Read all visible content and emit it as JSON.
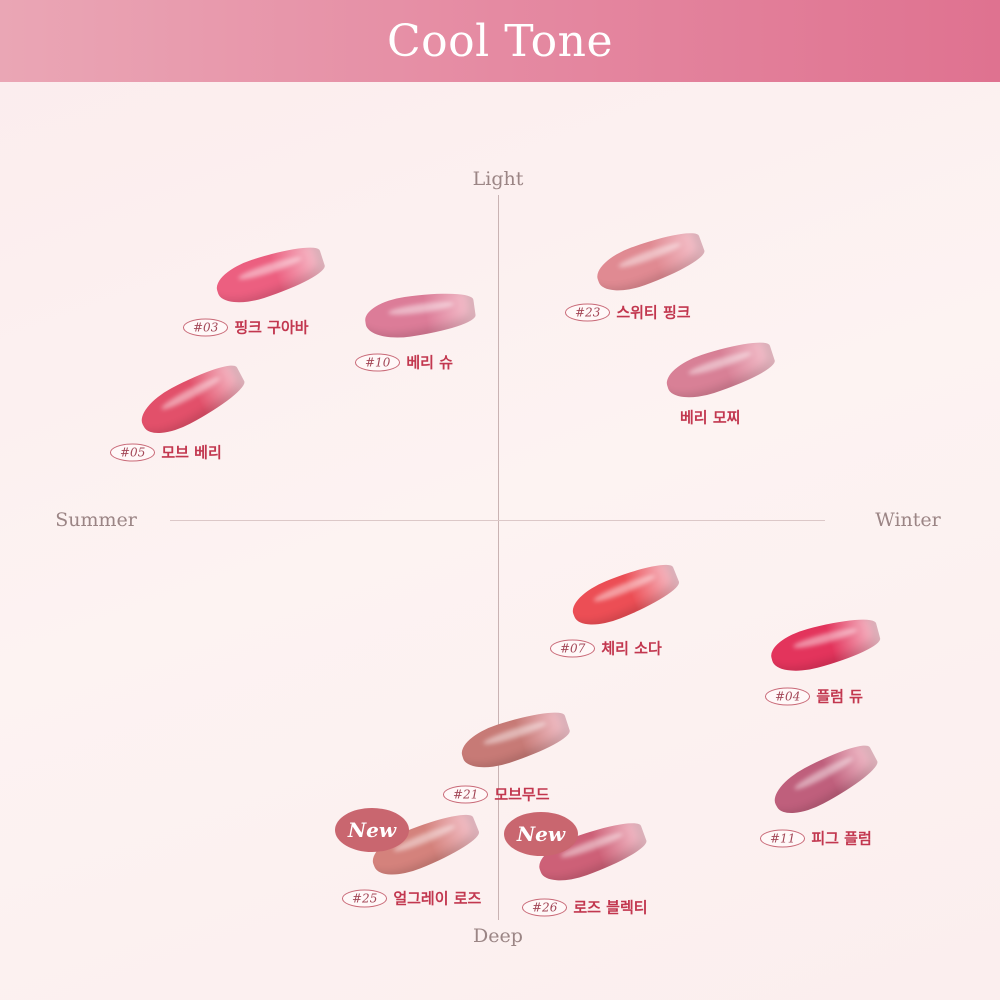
{
  "header": {
    "title": "Cool Tone"
  },
  "axes": {
    "top": "Light",
    "bottom": "Deep",
    "left": "Summer",
    "right": "Winter"
  },
  "shades": [
    {
      "number": "#03",
      "name": "핑크 구아바",
      "color": "#ec5f80",
      "new": false
    },
    {
      "number": "#10",
      "name": "베리 슈",
      "color": "#dc7c98",
      "new": false
    },
    {
      "number": "#05",
      "name": "모브 베리",
      "color": "#e2506a",
      "new": false
    },
    {
      "number": "#23",
      "name": "스위티 핑크",
      "color": "#e08a92",
      "new": false
    },
    {
      "number": "",
      "name": "베리 모찌",
      "color": "#d88096",
      "new": false
    },
    {
      "number": "#07",
      "name": "체리 소다",
      "color": "#ec4e55",
      "new": false
    },
    {
      "number": "#04",
      "name": "플럼 듀",
      "color": "#e3345c",
      "new": false
    },
    {
      "number": "#21",
      "name": "모브무드",
      "color": "#c77a76",
      "new": false
    },
    {
      "number": "#11",
      "name": "피그 플럼",
      "color": "#bf5f7c",
      "new": false
    },
    {
      "number": "#25",
      "name": "얼그레이 로즈",
      "color": "#d4827c",
      "new": true
    },
    {
      "number": "#26",
      "name": "로즈 블렉티",
      "color": "#cd6077",
      "new": true
    }
  ],
  "badge_label": "New"
}
